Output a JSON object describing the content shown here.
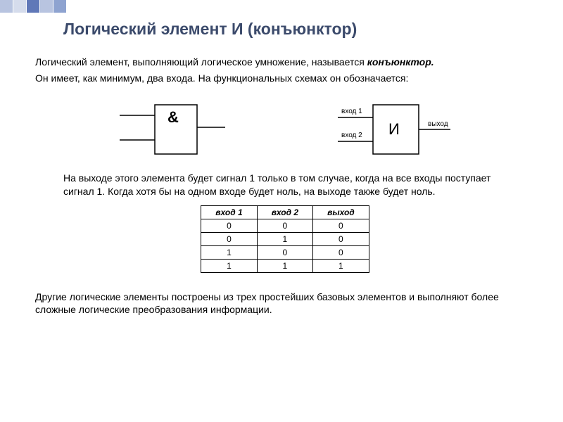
{
  "title": "Логический элемент И (конъюнктор)",
  "p1_a": "Логический элемент, выполняющий логическое умножение, называется ",
  "p1_bold": "конъюнктор.",
  "p1_b": "Он имеет, как минимум, два входа. На функциональных схемах он обозначается:",
  "diag1": {
    "symbol": "&"
  },
  "diag2": {
    "symbol": "И",
    "in1": "вход 1",
    "in2": "вход 2",
    "out": "выход"
  },
  "p2": "На выходе этого элемента будет сигнал 1 только в том случае, когда на все входы поступает сигнал 1. Когда хотя бы на одном входе будет ноль, на выходе также будет ноль.",
  "table": {
    "headers": [
      "вход 1",
      "вход 2",
      "выход"
    ],
    "rows": [
      [
        "0",
        "0",
        "0"
      ],
      [
        "0",
        "1",
        "0"
      ],
      [
        "1",
        "0",
        "0"
      ],
      [
        "1",
        "1",
        "1"
      ]
    ]
  },
  "p3": "Другие логические элементы построены из  трех простейших базовых элементов и выполняют более сложные логические преобразования информации.",
  "colors": {
    "title": "#3b4a6b",
    "border": "#000000"
  }
}
